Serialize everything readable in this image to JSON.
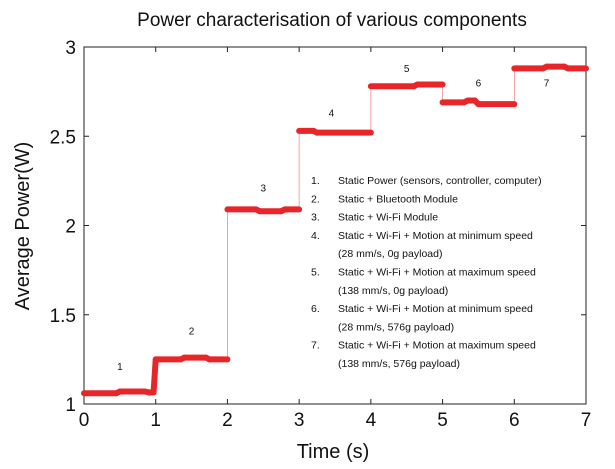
{
  "chart_data": {
    "type": "line",
    "title": "Power characterisation of various components",
    "xlabel": "Time (s)",
    "ylabel": "Average Power(W)",
    "xlim": [
      0,
      7
    ],
    "ylim": [
      1,
      3
    ],
    "xticks": [
      "0",
      "1",
      "2",
      "3",
      "4",
      "5",
      "6",
      "7"
    ],
    "yticks": [
      "1",
      "1.5",
      "2",
      "2.5",
      "3"
    ],
    "line_color": "#e8262a",
    "grid": false,
    "series": [
      {
        "x": [
          0.0,
          0.45,
          0.5,
          0.85,
          0.9,
          0.97,
          1.0,
          1.35,
          1.4,
          1.7,
          1.75,
          2.0,
          2.0,
          2.4,
          2.45,
          2.75,
          2.8,
          3.0,
          3.0,
          3.2,
          3.25,
          4.0,
          4.0,
          4.6,
          4.65,
          5.0,
          5.0,
          5.3,
          5.35,
          5.45,
          5.5,
          6.0,
          6.0,
          6.4,
          6.45,
          6.7,
          6.75,
          7.0
        ],
        "y": [
          1.06,
          1.06,
          1.07,
          1.07,
          1.065,
          1.065,
          1.25,
          1.25,
          1.26,
          1.26,
          1.25,
          1.25,
          2.09,
          2.09,
          2.08,
          2.08,
          2.09,
          2.09,
          2.53,
          2.53,
          2.52,
          2.52,
          2.78,
          2.78,
          2.79,
          2.79,
          2.69,
          2.69,
          2.7,
          2.7,
          2.68,
          2.68,
          2.88,
          2.88,
          2.89,
          2.89,
          2.88,
          2.88
        ]
      }
    ],
    "step_labels": [
      {
        "text": "1",
        "x": 0.5,
        "y": 1.19
      },
      {
        "text": "2",
        "x": 1.5,
        "y": 1.39
      },
      {
        "text": "3",
        "x": 2.5,
        "y": 2.19
      },
      {
        "text": "4",
        "x": 3.45,
        "y": 2.61
      },
      {
        "text": "5",
        "x": 4.5,
        "y": 2.86
      },
      {
        "text": "6",
        "x": 5.5,
        "y": 2.78
      },
      {
        "text": "7",
        "x": 6.45,
        "y": 2.78
      }
    ],
    "legend_position": "center-right",
    "legend": [
      {
        "num": "1.",
        "lines": [
          "Static Power (sensors, controller, computer)"
        ]
      },
      {
        "num": "2.",
        "lines": [
          "Static + Bluetooth Module"
        ]
      },
      {
        "num": "3.",
        "lines": [
          "Static + Wi-Fi Module"
        ]
      },
      {
        "num": "4.",
        "lines": [
          "Static + Wi-Fi + Motion at minimum speed",
          "(28 mm/s, 0g payload)"
        ]
      },
      {
        "num": "5.",
        "lines": [
          "Static + Wi-Fi + Motion at maximum speed",
          "(138 mm/s, 0g payload)"
        ]
      },
      {
        "num": "6.",
        "lines": [
          "Static + Wi-Fi + Motion at minimum speed",
          "(28 mm/s, 576g payload)"
        ]
      },
      {
        "num": "7.",
        "lines": [
          "Static + Wi-Fi + Motion at maximum speed",
          "(138 mm/s, 576g payload)"
        ]
      }
    ]
  }
}
